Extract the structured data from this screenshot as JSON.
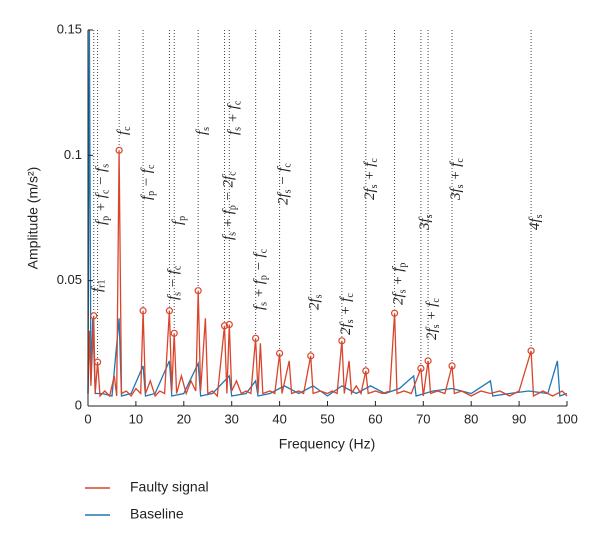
{
  "chart_data": {
    "type": "line",
    "xlabel": "Frequency (Hz)",
    "ylabel": "Amplitude (m/s²)",
    "xlim": [
      0,
      100
    ],
    "xticks": [
      0,
      10,
      20,
      30,
      40,
      50,
      60,
      70,
      80,
      90,
      100
    ],
    "ylim": [
      0,
      0.15
    ],
    "yticks": [
      0,
      0.05,
      0.1,
      0.15
    ],
    "legend": "bottom",
    "series": [
      {
        "name": "Faulty signal",
        "color": "#d9452b",
        "x": [
          0,
          0.3,
          0.6,
          1.2,
          1.5,
          2,
          2.5,
          3.5,
          4.5,
          5.5,
          6,
          6.5,
          7,
          8,
          9,
          10,
          11,
          11.5,
          12,
          13,
          14,
          15,
          16,
          17,
          17.5,
          18,
          18.5,
          19.5,
          20.5,
          21.5,
          22.5,
          23,
          23.5,
          24.5,
          25,
          26,
          27,
          28.5,
          29,
          29.5,
          30,
          31,
          32,
          33,
          34,
          35,
          35.5,
          36,
          36.5,
          38,
          39,
          40,
          40.5,
          42,
          42.5,
          44,
          45,
          46.5,
          47,
          48.5,
          50,
          51,
          52,
          53,
          53.5,
          54.5,
          55,
          56,
          57,
          58,
          58.5,
          60,
          61.5,
          63,
          64,
          64.5,
          66,
          67.5,
          69.5,
          70,
          71,
          71.5,
          73,
          74.5,
          76,
          76.5,
          78,
          80,
          82,
          84,
          86,
          88,
          90,
          92.5,
          93,
          95,
          97,
          99,
          100
        ],
        "values": [
          0.005,
          0.03,
          0.008,
          0.036,
          0.005,
          0.0175,
          0.004,
          0.006,
          0.004,
          0.012,
          0.004,
          0.102,
          0.005,
          0.006,
          0.004,
          0.007,
          0.005,
          0.038,
          0.005,
          0.01,
          0.004,
          0.006,
          0.005,
          0.038,
          0.006,
          0.029,
          0.005,
          0.012,
          0.005,
          0.01,
          0.006,
          0.046,
          0.006,
          0.035,
          0.005,
          0.006,
          0.004,
          0.032,
          0.005,
          0.0325,
          0.006,
          0.01,
          0.005,
          0.006,
          0.005,
          0.027,
          0.005,
          0.025,
          0.005,
          0.006,
          0.005,
          0.021,
          0.005,
          0.018,
          0.005,
          0.006,
          0.005,
          0.02,
          0.005,
          0.006,
          0.005,
          0.006,
          0.005,
          0.026,
          0.005,
          0.018,
          0.005,
          0.008,
          0.005,
          0.014,
          0.005,
          0.006,
          0.005,
          0.006,
          0.037,
          0.005,
          0.006,
          0.005,
          0.015,
          0.004,
          0.018,
          0.005,
          0.006,
          0.005,
          0.016,
          0.005,
          0.006,
          0.004,
          0.006,
          0.005,
          0.006,
          0.004,
          0.006,
          0.022,
          0.004,
          0.006,
          0.004,
          0.006,
          0.004
        ]
      },
      {
        "name": "Baseline",
        "color": "#1f77b4",
        "x": [
          0,
          0.3,
          0.6,
          1,
          1.5,
          3,
          5,
          6.5,
          7,
          9,
          11.5,
          12,
          14,
          17,
          17.5,
          20,
          23,
          23.5,
          26,
          29.5,
          30,
          33,
          35,
          35.5,
          38,
          41,
          44,
          47,
          50,
          53,
          56,
          59,
          62,
          65,
          68,
          68.5,
          72,
          76,
          80,
          84,
          84.5,
          88,
          92,
          96,
          98,
          98.5,
          100
        ],
        "values": [
          0.005,
          0.15,
          0.01,
          0.035,
          0.005,
          0.005,
          0.004,
          0.035,
          0.004,
          0.005,
          0.016,
          0.004,
          0.005,
          0.018,
          0.004,
          0.005,
          0.017,
          0.004,
          0.005,
          0.012,
          0.004,
          0.005,
          0.01,
          0.004,
          0.005,
          0.008,
          0.005,
          0.008,
          0.004,
          0.008,
          0.005,
          0.008,
          0.005,
          0.007,
          0.012,
          0.004,
          0.006,
          0.007,
          0.005,
          0.01,
          0.004,
          0.005,
          0.006,
          0.005,
          0.018,
          0.004,
          0.005
        ]
      }
    ],
    "annotations": [
      {
        "x": 1.2,
        "y": 0.036,
        "label": [
          "f",
          "r1"
        ]
      },
      {
        "x": 2,
        "y": 0.0175,
        "label": [
          "f",
          "p",
          " + f",
          "c",
          " − f",
          "s"
        ]
      },
      {
        "x": 6.5,
        "y": 0.102,
        "label": [
          "f",
          "c"
        ]
      },
      {
        "x": 11.5,
        "y": 0.038,
        "label": [
          "f",
          "p",
          " − f",
          "c"
        ]
      },
      {
        "x": 17,
        "y": 0.038,
        "label": [
          "f",
          "s",
          " − f",
          "c"
        ]
      },
      {
        "x": 18,
        "y": 0.029,
        "label": [
          "f",
          "p"
        ]
      },
      {
        "x": 23,
        "y": 0.046,
        "label": [
          "f",
          "s"
        ]
      },
      {
        "x": 28.5,
        "y": 0.032,
        "label": [
          "f",
          "s",
          " + f",
          "p",
          " − 2f",
          "c"
        ]
      },
      {
        "x": 29.5,
        "y": 0.0325,
        "label": [
          "f",
          "s",
          " + f",
          "c"
        ]
      },
      {
        "x": 35,
        "y": 0.027,
        "label": [
          "f",
          "s",
          " + f",
          "p",
          " − f",
          "c"
        ]
      },
      {
        "x": 40,
        "y": 0.021,
        "label": [
          "2f",
          "s",
          " − f",
          "c"
        ]
      },
      {
        "x": 46.5,
        "y": 0.02,
        "label": [
          "2f",
          "s"
        ]
      },
      {
        "x": 53,
        "y": 0.026,
        "label": [
          "2f",
          "s",
          " + f",
          "c"
        ]
      },
      {
        "x": 58,
        "y": 0.014,
        "label": [
          "2f",
          "s",
          " + f",
          "c"
        ]
      },
      {
        "x": 64,
        "y": 0.037,
        "label": [
          "2f",
          "s",
          " + f",
          "p"
        ]
      },
      {
        "x": 69.5,
        "y": 0.015,
        "label": [
          "3f",
          "s"
        ]
      },
      {
        "x": 71,
        "y": 0.018,
        "label": [
          "2f",
          "s",
          " + f",
          "c"
        ]
      },
      {
        "x": 76,
        "y": 0.016,
        "label": [
          "3f",
          "s",
          " + f",
          "c"
        ]
      },
      {
        "x": 92.5,
        "y": 0.022,
        "label": [
          "4f",
          "s"
        ]
      }
    ]
  }
}
